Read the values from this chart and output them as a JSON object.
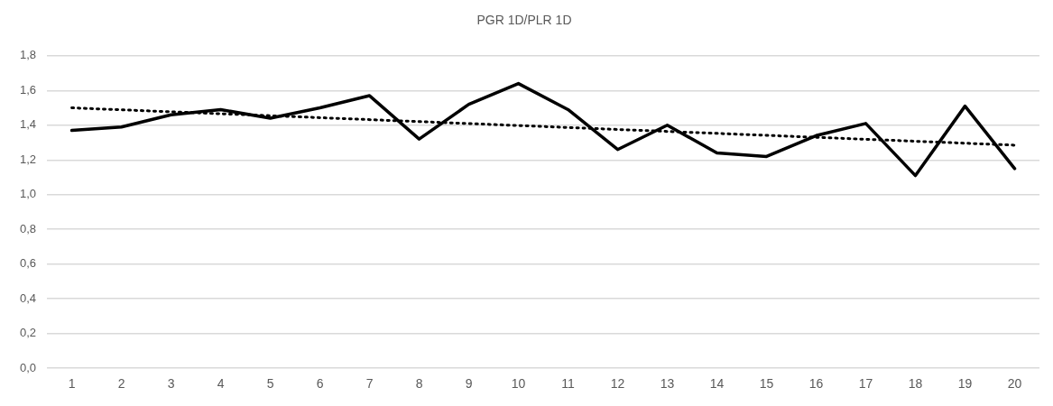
{
  "chart_data": {
    "type": "line",
    "title": "PGR 1D/PLR 1D",
    "x": [
      1,
      2,
      3,
      4,
      5,
      6,
      7,
      8,
      9,
      10,
      11,
      12,
      13,
      14,
      15,
      16,
      17,
      18,
      19,
      20
    ],
    "series": [
      {
        "color": "#000000",
        "values": [
          1.37,
          1.39,
          1.46,
          1.49,
          1.44,
          1.5,
          1.57,
          1.32,
          1.52,
          1.64,
          1.49,
          1.26,
          1.4,
          1.24,
          1.22,
          1.34,
          1.41,
          1.11,
          1.51,
          1.15
        ]
      },
      {
        "type": "line",
        "color": "#000000",
        "line_style": "dotted",
        "x": [
          1,
          20
        ],
        "values": [
          1.5,
          1.285
        ]
      }
    ],
    "xlim": [
      0.5,
      20.5
    ],
    "xticks": [
      1,
      2,
      3,
      4,
      5,
      6,
      7,
      8,
      9,
      10,
      11,
      12,
      13,
      14,
      15,
      16,
      17,
      18,
      19,
      20
    ],
    "ylim": [
      0,
      1.8
    ],
    "yticks": [
      {
        "value": 0,
        "label": "0,0"
      },
      {
        "value": 0.2,
        "label": "0,2"
      },
      {
        "value": 0.4,
        "label": "0,4"
      },
      {
        "value": 0.6,
        "label": "0,6"
      },
      {
        "value": 0.8,
        "label": "0,8"
      },
      {
        "value": 1,
        "label": "1,0"
      },
      {
        "value": 1.2,
        "label": "1,2"
      },
      {
        "value": 1.4,
        "label": "1,4"
      },
      {
        "value": 1.6,
        "label": "1,6"
      },
      {
        "value": 1.8,
        "label": "1,8"
      }
    ],
    "grid": "y",
    "legend": false,
    "marker": "none",
    "line_style": "solid"
  }
}
